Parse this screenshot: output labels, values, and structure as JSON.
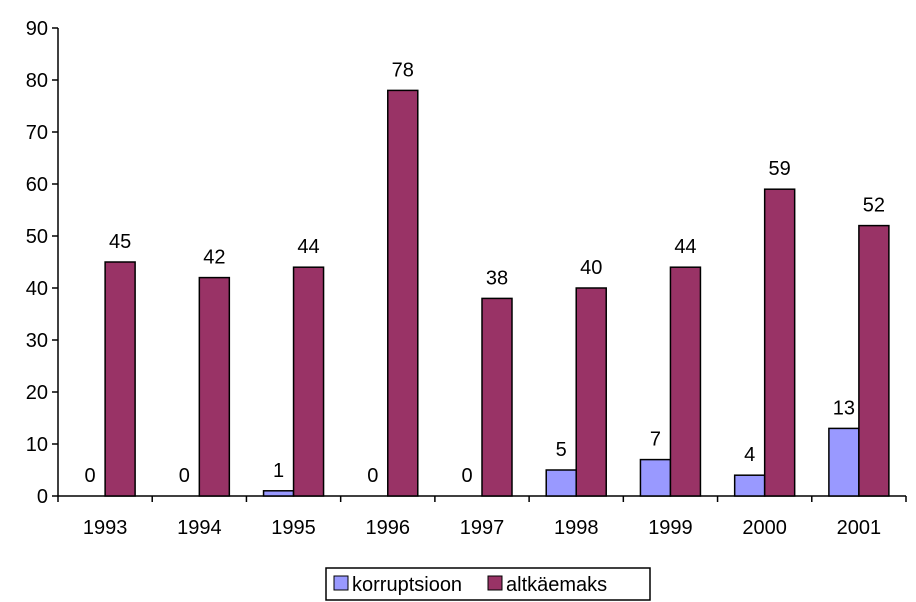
{
  "chart_data": {
    "type": "bar",
    "categories": [
      "1993",
      "1994",
      "1995",
      "1996",
      "1997",
      "1998",
      "1999",
      "2000",
      "2001"
    ],
    "series": [
      {
        "name": "korruptsioon",
        "color": "#9999ff",
        "values": [
          0,
          0,
          1,
          0,
          0,
          5,
          7,
          4,
          13
        ]
      },
      {
        "name": "altkäemaks",
        "color": "#993366",
        "values": [
          45,
          42,
          44,
          78,
          38,
          40,
          44,
          59,
          52
        ]
      }
    ],
    "ylim": [
      0,
      90
    ],
    "yticks": [
      "0",
      "10",
      "20",
      "30",
      "40",
      "50",
      "60",
      "70",
      "80",
      "90"
    ],
    "grid": false,
    "legend_position": "bottom-center",
    "data_labels": true
  }
}
